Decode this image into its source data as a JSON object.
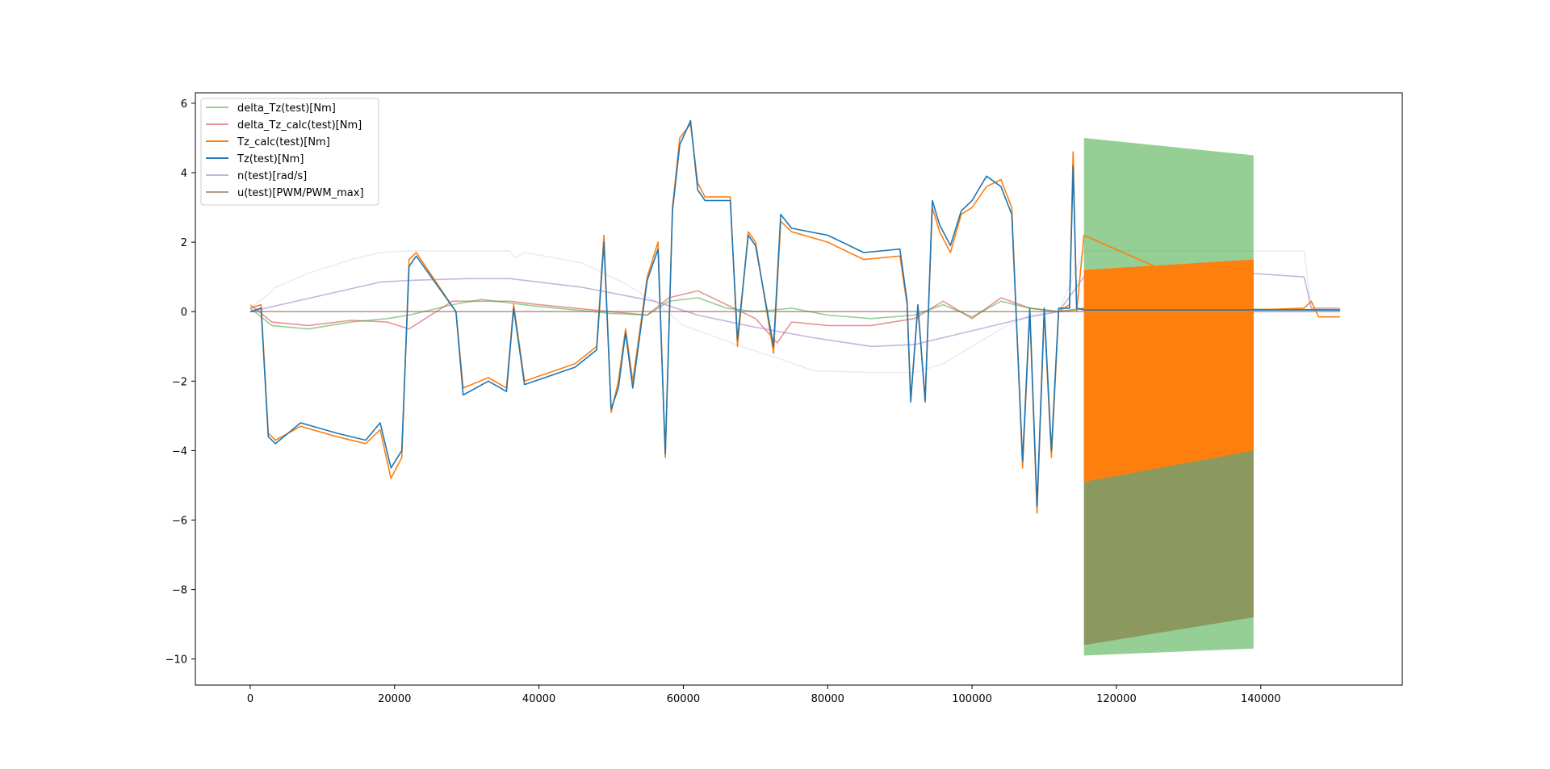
{
  "chart_data": {
    "type": "line",
    "title": "",
    "xlabel": "",
    "ylabel": "",
    "xlim": [
      -7600,
      159600
    ],
    "ylim": [
      -10.75,
      6.3
    ],
    "grid": false,
    "legend_position": "top-left",
    "x_ticks": [
      0,
      20000,
      40000,
      60000,
      80000,
      100000,
      120000,
      140000
    ],
    "x_tick_labels": [
      "0",
      "20000",
      "40000",
      "60000",
      "80000",
      "100000",
      "120000",
      "140000"
    ],
    "y_ticks": [
      6,
      4,
      2,
      0,
      -2,
      -4,
      -6,
      -8,
      -10
    ],
    "y_tick_labels": [
      "6",
      "4",
      "2",
      "0",
      "−2",
      "−4",
      "−6",
      "−8",
      "−10"
    ],
    "series": [
      {
        "name": "delta_Tz(test)[Nm]",
        "color": "#2ca02c",
        "opacity": 0.5,
        "x": [
          0,
          3000,
          8000,
          14000,
          19000,
          22000,
          28000,
          32000,
          36000,
          40000,
          45000,
          50000,
          55000,
          58000,
          62000,
          66000,
          70000,
          75000,
          80000,
          86000,
          92000,
          96000,
          100000,
          104000,
          108000,
          112000,
          114500,
          115500,
          151000
        ],
        "y": [
          0.1,
          -0.4,
          -0.5,
          -0.3,
          -0.2,
          -0.1,
          0.2,
          0.35,
          0.25,
          0.15,
          0.05,
          -0.05,
          -0.1,
          0.3,
          0.4,
          0.1,
          0.0,
          0.1,
          -0.1,
          -0.2,
          -0.1,
          0.2,
          -0.15,
          0.3,
          0.1,
          0.0,
          0.05,
          0.1,
          0.05
        ],
        "band": {
          "x": [
            115500,
            139000
          ],
          "upper": [
            5.0,
            4.5
          ],
          "lower": [
            -9.9,
            -9.7
          ]
        }
      },
      {
        "name": "delta_Tz_calc(test)[Nm]",
        "color": "#d62728",
        "opacity": 0.5,
        "x": [
          0,
          3000,
          8000,
          14000,
          19000,
          22000,
          28000,
          32000,
          36000,
          40000,
          45000,
          50000,
          55000,
          58000,
          62000,
          66000,
          70000,
          73000,
          75000,
          80000,
          86000,
          92000,
          96000,
          100000,
          104000,
          108000,
          112000,
          115500,
          151000
        ],
        "y": [
          0.2,
          -0.3,
          -0.4,
          -0.25,
          -0.3,
          -0.5,
          0.3,
          0.3,
          0.3,
          0.2,
          0.1,
          0.0,
          -0.1,
          0.4,
          0.6,
          0.2,
          -0.2,
          -0.9,
          -0.3,
          -0.4,
          -0.4,
          -0.2,
          0.3,
          -0.2,
          0.4,
          0.1,
          0.0,
          0.1,
          0.05
        ],
        "band": {
          "x": [
            115500,
            139000
          ],
          "upper": [
            1.1,
            1.3
          ],
          "lower": [
            -9.6,
            -8.8
          ]
        }
      },
      {
        "name": "Tz_calc(test)[Nm]",
        "color": "#ff7f0e",
        "opacity": 1,
        "x": [
          0,
          1500,
          2500,
          3500,
          7000,
          12000,
          16000,
          18000,
          19500,
          21000,
          22000,
          23000,
          28500,
          29500,
          33000,
          35500,
          36500,
          38000,
          45000,
          48000,
          49000,
          50000,
          51000,
          52000,
          53000,
          55000,
          56500,
          57500,
          58500,
          59500,
          61000,
          62000,
          63000,
          66500,
          67500,
          69000,
          70000,
          72500,
          73500,
          75000,
          80000,
          85000,
          90000,
          91000,
          91500,
          92500,
          93500,
          94500,
          95500,
          97000,
          98500,
          100000,
          102000,
          104000,
          105500,
          107000,
          108000,
          109000,
          110000,
          111000,
          112000,
          113500,
          114000,
          114500,
          115500,
          139000,
          146000,
          147000,
          148000,
          151000
        ],
        "y": [
          0.1,
          0.2,
          -3.5,
          -3.7,
          -3.3,
          -3.6,
          -3.8,
          -3.4,
          -4.8,
          -4.2,
          1.5,
          1.7,
          0.0,
          -2.2,
          -1.9,
          -2.2,
          0.2,
          -2.0,
          -1.5,
          -1.0,
          2.2,
          -2.9,
          -2.0,
          -0.5,
          -2.0,
          1.0,
          2.0,
          -4.2,
          3.0,
          5.0,
          5.4,
          3.7,
          3.3,
          3.3,
          -1.0,
          2.3,
          2.0,
          -1.2,
          2.6,
          2.3,
          2.0,
          1.5,
          1.6,
          0.2,
          -2.5,
          0.1,
          -2.5,
          3.0,
          2.3,
          1.7,
          2.8,
          3.0,
          3.6,
          3.8,
          3.0,
          -4.5,
          0.0,
          -5.8,
          0.0,
          -4.2,
          0.0,
          0.2,
          4.6,
          0.0,
          2.2,
          0.05,
          0.1,
          0.3,
          -0.15,
          -0.15
        ],
        "band": {
          "x": [
            115500,
            139000
          ],
          "upper": [
            1.2,
            1.5
          ],
          "lower": [
            -4.9,
            -4.0
          ]
        }
      },
      {
        "name": "Tz(test)[Nm]",
        "color": "#1f77b4",
        "opacity": 1,
        "x": [
          0,
          1500,
          2500,
          3500,
          7000,
          12000,
          16000,
          18000,
          19500,
          21000,
          22000,
          23000,
          28500,
          29500,
          33000,
          35500,
          36500,
          38000,
          45000,
          48000,
          49000,
          50000,
          51000,
          52000,
          53000,
          55000,
          56500,
          57500,
          58500,
          59500,
          61000,
          62000,
          63000,
          66500,
          67500,
          69000,
          70000,
          72500,
          73500,
          75000,
          80000,
          85000,
          90000,
          91000,
          91500,
          92500,
          93500,
          94500,
          95500,
          97000,
          98500,
          100000,
          102000,
          104000,
          105500,
          107000,
          108000,
          109000,
          110000,
          111000,
          112000,
          113500,
          114000,
          114500,
          115500,
          139000,
          146000,
          147000,
          148000,
          151000
        ],
        "y": [
          0.0,
          0.1,
          -3.6,
          -3.8,
          -3.2,
          -3.5,
          -3.7,
          -3.2,
          -4.5,
          -4.0,
          1.3,
          1.6,
          0.0,
          -2.4,
          -2.0,
          -2.3,
          0.1,
          -2.1,
          -1.6,
          -1.1,
          2.0,
          -2.8,
          -2.2,
          -0.6,
          -2.2,
          0.9,
          1.8,
          -4.1,
          2.9,
          4.8,
          5.5,
          3.5,
          3.2,
          3.2,
          -0.8,
          2.2,
          1.9,
          -1.0,
          2.8,
          2.4,
          2.2,
          1.7,
          1.8,
          0.3,
          -2.6,
          0.2,
          -2.6,
          3.2,
          2.5,
          1.9,
          2.9,
          3.2,
          3.9,
          3.6,
          2.8,
          -4.3,
          0.1,
          -5.6,
          0.1,
          -4.0,
          0.1,
          0.1,
          4.2,
          0.1,
          0.05,
          0.05,
          0.05,
          0.05,
          0.05,
          0.05
        ]
      },
      {
        "name": "n(test)[rad/s]",
        "color": "#9467bd",
        "opacity": 0.5,
        "x": [
          0,
          18000,
          22000,
          30000,
          36000,
          46000,
          56000,
          62000,
          70000,
          78000,
          86000,
          92000,
          96000,
          102000,
          108000,
          112000,
          115500,
          139000,
          146000,
          147000,
          151000
        ],
        "y": [
          0.0,
          0.85,
          0.9,
          0.95,
          0.95,
          0.7,
          0.3,
          -0.1,
          -0.45,
          -0.75,
          -1.0,
          -0.95,
          -0.75,
          -0.45,
          -0.15,
          0.0,
          1.0,
          1.1,
          1.0,
          0.1,
          0.1
        ]
      },
      {
        "name": "u(test)[PWM/PWM_max]",
        "color": "#8c564b",
        "opacity": 0.6,
        "x": [
          0,
          151000
        ],
        "y": [
          0.0,
          0.0
        ]
      },
      {
        "name": "",
        "color": "#1f77b4",
        "opacity": 0.12,
        "x": [
          0,
          2500,
          3500,
          8000,
          14000,
          18000,
          22000,
          28000,
          36000,
          36700,
          38000,
          46000,
          52000,
          56000,
          60000,
          64000,
          68000,
          74000,
          78000,
          86000,
          92000,
          96000,
          100000,
          104000,
          108000,
          112000,
          115500,
          139000,
          146000,
          147000,
          151000
        ],
        "y": [
          0.1,
          0.5,
          0.7,
          1.1,
          1.5,
          1.7,
          1.75,
          1.75,
          1.75,
          1.55,
          1.7,
          1.4,
          0.8,
          0.3,
          -0.4,
          -0.7,
          -1.0,
          -1.4,
          -1.7,
          -1.75,
          -1.75,
          -1.5,
          -1.0,
          -0.5,
          -0.1,
          0.0,
          1.75,
          1.75,
          1.75,
          0.1,
          0.1
        ]
      }
    ]
  }
}
